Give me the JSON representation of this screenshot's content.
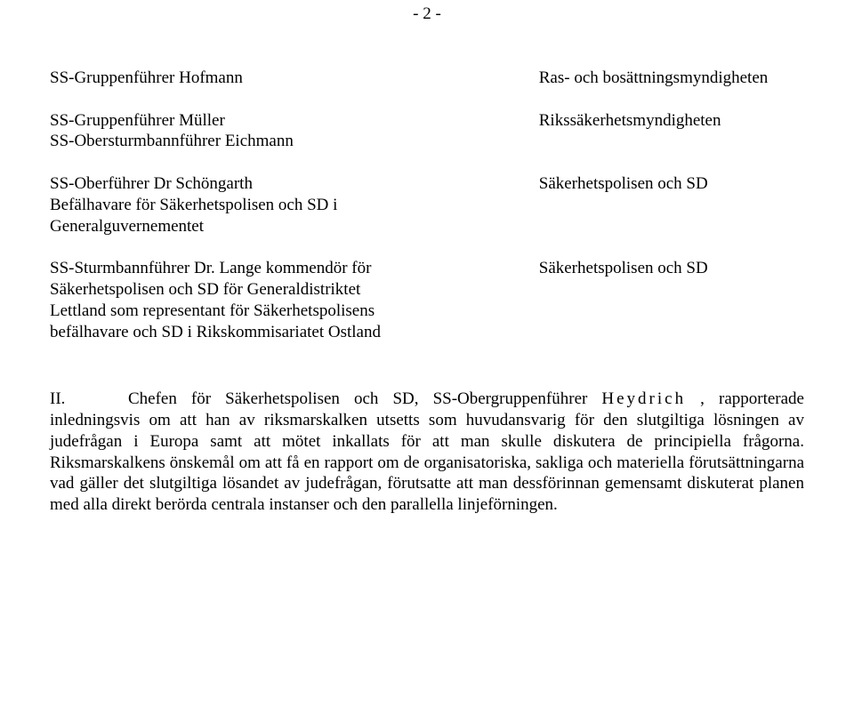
{
  "page_number": "- 2 -",
  "rows": [
    {
      "left": "SS-Gruppenführer Hofmann",
      "right": "Ras- och bosättningsmyndigheten"
    },
    {
      "left": "SS-Gruppenführer Müller\nSS-Obersturmbannführer Eichmann",
      "right": "Rikssäkerhetsmyndigheten"
    },
    {
      "left": "SS-Oberführer Dr Schöngarth\nBefälhavare för Säkerhetspolisen och SD i\nGeneralguvernementet",
      "right": "Säkerhetspolisen och SD"
    },
    {
      "left": "SS-Sturmbannführer Dr. Lange kommendör för\nSäkerhetspolisen och SD för Generaldistriktet\nLettland som representant för Säkerhetspolisens\nbefälhavare och SD i Rikskommisariatet Ostland",
      "right": "Säkerhetspolisen och SD"
    }
  ],
  "section_roman": "II.",
  "spaced_name": "Heydrich",
  "para_before_name": "Chefen för Säkerhetspolisen och SD, SS-Obergruppenführer ",
  "para_after_name": " , rapporterade inledningsvis om att han av riksmarskalken utsetts som huvudansvarig för den slutgiltiga lösningen av judefrågan i Europa  samt att mötet inkallats för att man skulle diskutera de principiella frågorna. Riksmarskalkens önskemål om att få en rapport om de organisatoriska, sakliga och materiella förutsättningarna vad gäller det slutgiltiga lösandet av judefrågan, förutsatte att man dessförinnan gemensamt diskuterat planen med alla direkt berörda centrala instanser och den parallella linjeförningen.",
  "colors": {
    "text": "#000000",
    "background": "#ffffff"
  },
  "typography": {
    "font_family": "Times New Roman",
    "body_fontsize_pt": 14,
    "line_height": 1.25
  }
}
